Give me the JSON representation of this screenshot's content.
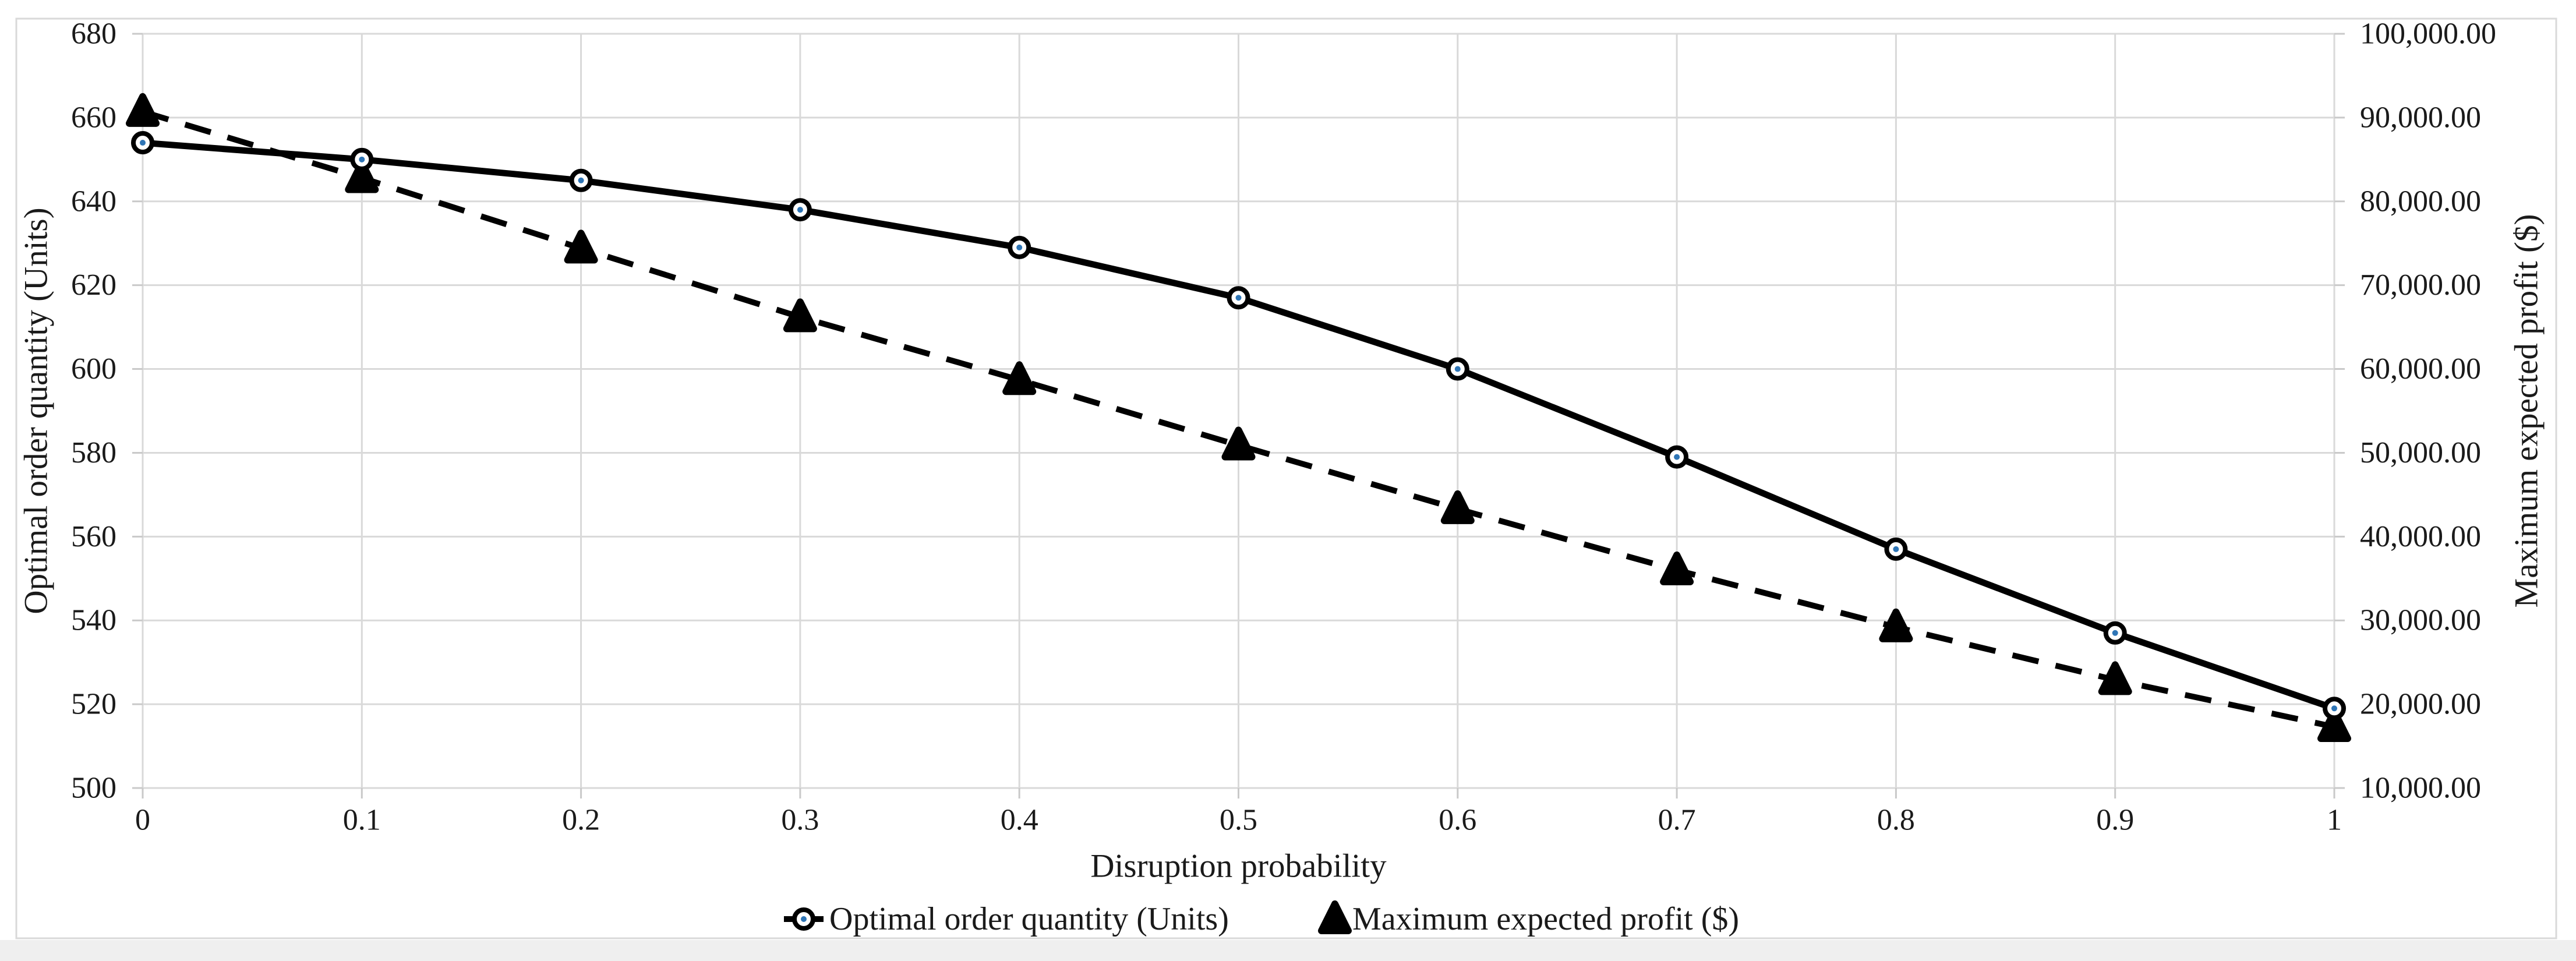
{
  "figure": {
    "background": "#ffffff",
    "frame_color": "#d9d9d9",
    "grid_color": "#d9d9d9",
    "tick_color": "#c9c9c9",
    "text_color": "#1a1a1a",
    "bottom_margin_color": "#efefef",
    "series_color": "#000000",
    "marker_dot_color": "#2e75b6"
  },
  "chart_data": {
    "type": "line",
    "x": [
      0,
      0.1,
      0.2,
      0.3,
      0.4,
      0.5,
      0.6,
      0.7,
      0.8,
      0.9,
      1
    ],
    "x_tick_labels": [
      "0",
      "0.1",
      "0.2",
      "0.3",
      "0.4",
      "0.5",
      "0.6",
      "0.7",
      "0.8",
      "0.9",
      "1"
    ],
    "xlabel": "Disruption probability",
    "grid": "both",
    "legend_position": "bottom",
    "series": [
      {
        "name": "Optimal order quantity (Units)",
        "axis": "left",
        "line_style": "solid",
        "marker": "open-circle",
        "color": "#000000",
        "values": [
          654,
          650,
          645,
          638,
          629,
          617,
          600,
          579,
          557,
          537,
          519
        ]
      },
      {
        "name": "Maximum expected profit ($)",
        "axis": "right",
        "line_style": "dashed",
        "marker": "filled-triangle",
        "color": "#000000",
        "values": [
          90700,
          82800,
          74400,
          66200,
          58700,
          50900,
          43300,
          36000,
          29200,
          22900,
          17300
        ]
      }
    ],
    "y_left": {
      "label": "Optimal order quantity (Units)",
      "min": 500,
      "max": 680,
      "step": 20,
      "tick_labels": [
        "500",
        "520",
        "540",
        "560",
        "580",
        "600",
        "620",
        "640",
        "660",
        "680"
      ]
    },
    "y_right": {
      "label": "Maximum expected profit ($)",
      "min": 10000,
      "max": 100000,
      "step": 10000,
      "tick_labels": [
        "10,000.00",
        "20,000.00",
        "30,000.00",
        "40,000.00",
        "50,000.00",
        "60,000.00",
        "70,000.00",
        "80,000.00",
        "90,000.00",
        "100,000.00"
      ]
    }
  }
}
